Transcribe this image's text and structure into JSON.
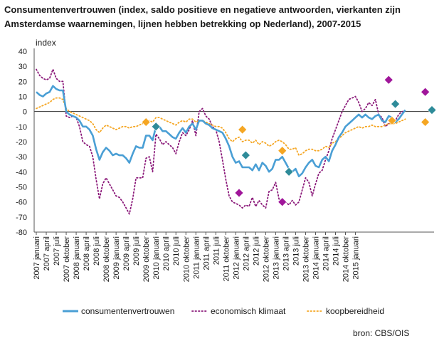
{
  "chart_data": {
    "type": "line",
    "title": "Consumentenvertrouwen (index, saldo positieve en negatieve antwoorden, vierkanten zijn Amsterdamse waarnemingen, lijnen hebben betrekking op Nederland), 2007-2015",
    "ylabel": "index",
    "xlabel": "",
    "ylim": [
      -80,
      40
    ],
    "yticks": [
      40,
      30,
      20,
      10,
      0,
      -10,
      -20,
      -30,
      -40,
      -50,
      -60,
      -70,
      -80
    ],
    "x_tick_labels": [
      "2007 januari",
      "2007 april",
      "2007 juli",
      "2007 oktober",
      "2008 januari",
      "2008 april",
      "2008 juli",
      "2008 oktober",
      "2009 januari",
      "2009 april",
      "2009 juli",
      "2009 oktober",
      "2010 januari",
      "2010 april",
      "2010 juli",
      "2010 oktober",
      "2011 januari",
      "2011 april",
      "2011 juli",
      "2011 oktober",
      "2012 januari",
      "2012 april",
      "2012 juli",
      "2012 oktober",
      "2013 januari",
      "2013 april",
      "2013 juli",
      "2013 oktober",
      "2014 januari",
      "2014 april",
      "2014 juli",
      "2014 oktober",
      "2015 januari"
    ],
    "series": [
      {
        "name": "consumentenvertrouwen",
        "color": "#4a9fd5",
        "style": "solid",
        "values": [
          13,
          11,
          10,
          12,
          13,
          17,
          15,
          14,
          14,
          0,
          -2,
          -3,
          -4,
          -6,
          -10,
          -10,
          -12,
          -16,
          -25,
          -32,
          -27,
          -24,
          -26,
          -29,
          -28,
          -29,
          -29,
          -31,
          -34,
          -28,
          -23,
          -24,
          -24,
          -16,
          -16,
          -19,
          -10,
          -10,
          -13,
          -13,
          -15,
          -17,
          -18,
          -14,
          -11,
          -14,
          -10,
          -8,
          -12,
          -6,
          -6,
          -8,
          -9,
          -11,
          -12,
          -13,
          -14,
          -18,
          -23,
          -30,
          -34,
          -33,
          -37,
          -37,
          -37,
          -39,
          -35,
          -39,
          -34,
          -36,
          -40,
          -38,
          -32,
          -32,
          -30,
          -34,
          -38,
          -40,
          -38,
          -43,
          -41,
          -37,
          -34,
          -32,
          -36,
          -37,
          -32,
          -30,
          -33,
          -26,
          -22,
          -17,
          -14,
          -10,
          -8,
          -6,
          -4,
          -2,
          -4,
          -2,
          -4,
          -5,
          -3,
          -2,
          -6,
          -7,
          -3,
          -4,
          -7,
          -5,
          -2,
          1
        ]
      },
      {
        "name": "economisch klimaat",
        "color": "#8b1a7a",
        "style": "dotted",
        "values": [
          28,
          24,
          22,
          21,
          22,
          28,
          22,
          20,
          20,
          -3,
          -4,
          -3,
          -4,
          -10,
          -20,
          -22,
          -23,
          -30,
          -45,
          -58,
          -48,
          -44,
          -48,
          -52,
          -56,
          -57,
          -60,
          -64,
          -68,
          -58,
          -44,
          -44,
          -44,
          -31,
          -30,
          -40,
          -15,
          -18,
          -22,
          -20,
          -22,
          -24,
          -28,
          -20,
          -14,
          -16,
          -12,
          -6,
          -16,
          0,
          2,
          -3,
          -5,
          -10,
          -12,
          -20,
          -32,
          -45,
          -56,
          -60,
          -61,
          -62,
          -64,
          -62,
          -63,
          -57,
          -63,
          -59,
          -62,
          -64,
          -53,
          -52,
          -47,
          -58,
          -61,
          -60,
          -62,
          -59,
          -62,
          -60,
          -52,
          -44,
          -47,
          -56,
          -48,
          -41,
          -39,
          -32,
          -26,
          -18,
          -12,
          -6,
          0,
          4,
          8,
          9,
          10,
          6,
          0,
          2,
          6,
          4,
          8,
          -2,
          -4,
          -10,
          -8,
          -8,
          -6,
          -2,
          0,
          0
        ]
      },
      {
        "name": "koopbereidheid",
        "color": "#f5a623",
        "style": "dotted",
        "values": [
          2,
          3,
          4,
          5,
          6,
          8,
          9,
          9,
          8,
          2,
          0,
          -1,
          -2,
          -3,
          -4,
          -5,
          -6,
          -8,
          -12,
          -14,
          -11,
          -9,
          -10,
          -11,
          -12,
          -11,
          -10,
          -10,
          -11,
          -10,
          -10,
          -9,
          -8,
          -6,
          -6,
          -7,
          -4,
          -4,
          -5,
          -6,
          -7,
          -8,
          -9,
          -7,
          -6,
          -7,
          -5,
          -5,
          -7,
          -6,
          -6,
          -7,
          -8,
          -9,
          -10,
          -10,
          -11,
          -14,
          -18,
          -20,
          -18,
          -17,
          -20,
          -19,
          -19,
          -21,
          -19,
          -22,
          -20,
          -21,
          -23,
          -22,
          -20,
          -19,
          -20,
          -22,
          -25,
          -25,
          -24,
          -29,
          -28,
          -26,
          -25,
          -25,
          -26,
          -26,
          -25,
          -23,
          -24,
          -21,
          -20,
          -18,
          -16,
          -14,
          -13,
          -12,
          -11,
          -10,
          -11,
          -10,
          -10,
          -9,
          -10,
          -10,
          -10,
          -9,
          -8,
          -8,
          -8,
          -7,
          -6,
          -5
        ]
      }
    ],
    "amsterdam_markers": [
      {
        "series": "koopbereidheid",
        "color": "#f5a623",
        "points": [
          [
            33,
            -7
          ],
          [
            62,
            -12
          ],
          [
            74,
            -26
          ],
          [
            107,
            -6
          ],
          [
            117,
            -7
          ]
        ]
      },
      {
        "series": "consumentenvertrouwen",
        "color": "#2e8b99",
        "points": [
          [
            36,
            -10
          ],
          [
            63,
            -29
          ],
          [
            76,
            -40
          ],
          [
            108,
            5
          ],
          [
            119,
            1
          ]
        ]
      },
      {
        "series": "economisch klimaat",
        "color": "#a0169a",
        "points": [
          [
            61,
            -54
          ],
          [
            74,
            -60
          ],
          [
            106,
            21
          ],
          [
            117,
            13
          ]
        ]
      }
    ],
    "legend": [
      {
        "label": "consumentenvertrouwen",
        "color": "#4a9fd5",
        "style": "solid"
      },
      {
        "label": "economisch klimaat",
        "color": "#8b1a7a",
        "style": "dotted"
      },
      {
        "label": "koopbereidheid",
        "color": "#f5a623",
        "style": "dotted"
      }
    ],
    "source": "bron: CBS/OIS"
  }
}
